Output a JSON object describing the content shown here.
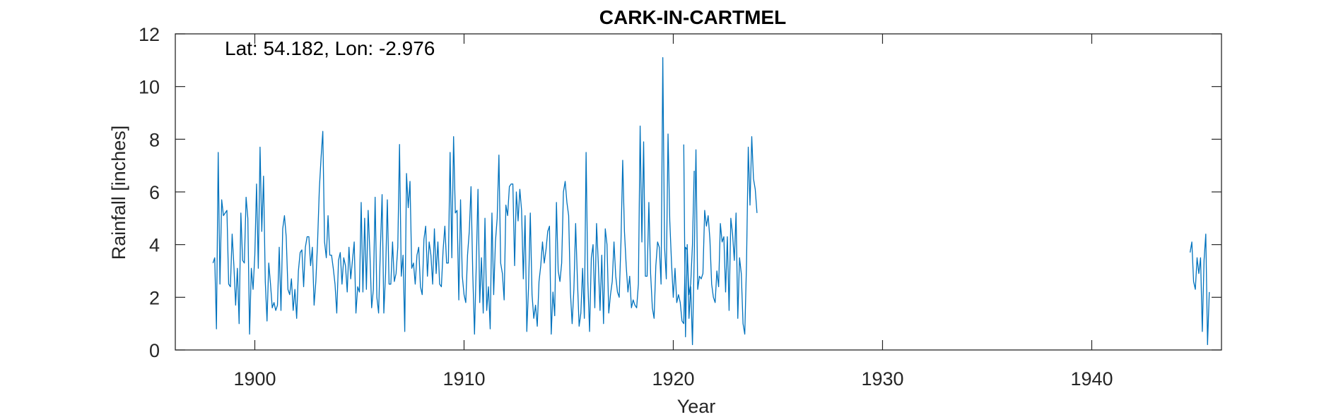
{
  "chart_data": {
    "type": "line",
    "title": "CARK-IN-CARTMEL",
    "xlabel": "Year",
    "ylabel": "Rainfall [inches]",
    "annotation": "Lat: 54.182, Lon: -2.976",
    "xlim": [
      1896.2,
      1946.2
    ],
    "ylim": [
      0,
      12
    ],
    "xticks": [
      1900,
      1910,
      1920,
      1930,
      1940
    ],
    "yticks": [
      0,
      2,
      4,
      6,
      8,
      10,
      12
    ],
    "grid": false,
    "line_color": "#0072BD",
    "series": [
      {
        "segments": [
          {
            "start": 1898.0,
            "step": 0.08333,
            "values": [
              3.3,
              3.5,
              0.8,
              7.5,
              2.5,
              5.7,
              5.1,
              5.2,
              5.3,
              2.5,
              2.4,
              4.4,
              3.2,
              1.7,
              3.1,
              1.0,
              5.2,
              3.4,
              3.3,
              5.8,
              5.0,
              0.6,
              3.1,
              2.3,
              3.6,
              6.3,
              3.1,
              7.7,
              4.5,
              6.6,
              2.6,
              1.1,
              3.3,
              2.5,
              1.6,
              1.8,
              1.5,
              1.7,
              3.9,
              1.5,
              4.6,
              5.1,
              4.3,
              2.3,
              2.1,
              2.7,
              1.5,
              2.3,
              1.2,
              3.0,
              3.7,
              3.8,
              2.4,
              3.9,
              4.3,
              4.3,
              3.2,
              3.9,
              1.7,
              2.6,
              4.1,
              6.1,
              7.3,
              8.3,
              4.1,
              3.5,
              5.1,
              3.6,
              3.6,
              3.1,
              2.5,
              1.4,
              3.4,
              3.7,
              2.5,
              3.5,
              3.2,
              2.2,
              3.9,
              2.7,
              3.4,
              4.1,
              1.4,
              2.4,
              2.2,
              5.6,
              2.2,
              5.0,
              2.3,
              5.3,
              3.7,
              1.6,
              2.3,
              5.8,
              2.0,
              1.4,
              3.8,
              5.9,
              1.4,
              2.9,
              5.7,
              2.5,
              2.5,
              4.1,
              2.6,
              2.9,
              3.9,
              7.8,
              2.8,
              3.6,
              0.7,
              6.7,
              5.4,
              6.4,
              3.1,
              3.3,
              2.5,
              3.6,
              3.9,
              2.4,
              2.1,
              4.2,
              4.7,
              2.8,
              4.1,
              3.6,
              2.5,
              4.6,
              2.9,
              4.1,
              2.5,
              2.4,
              3.8,
              4.7,
              3.3,
              3.3,
              7.5,
              3.5,
              8.1,
              5.2,
              5.3,
              1.9,
              5.7,
              2.8,
              2.1,
              1.8,
              3.6,
              4.5,
              6.2,
              2.9,
              0.6,
              3.2,
              6.1,
              1.8,
              3.5,
              1.4,
              5.0,
              1.5,
              2.4,
              0.8,
              5.2,
              2.1,
              4.1,
              5.0,
              7.4,
              3.3,
              2.9,
              1.9,
              5.5,
              5.1,
              6.2,
              6.3,
              6.3,
              3.2,
              6.0,
              4.9,
              6.1,
              5.3,
              2.7,
              5.1,
              0.7,
              2.4,
              5.2,
              2.1,
              1.2,
              1.7,
              0.9,
              2.6,
              3.2,
              4.1,
              3.3,
              3.8,
              4.5,
              4.7,
              0.6,
              2.2,
              1.3,
              5.6,
              3.0,
              2.6,
              3.3,
              6.0,
              6.4,
              5.6,
              5.1,
              2.2,
              1.0,
              2.3,
              4.8,
              2.7,
              0.9,
              1.4,
              3.1,
              1.2,
              7.5,
              2.6,
              0.7,
              3.5,
              4.0,
              1.6,
              4.8,
              3.3,
              1.5,
              3.6,
              1.0,
              4.6,
              4.0,
              1.4,
              2.1,
              2.6,
              4.1,
              2.8,
              2.2,
              2.0,
              4.1,
              7.2,
              4.5,
              3.2,
              2.2,
              2.8,
              1.6,
              1.9,
              1.7,
              1.6,
              2.5,
              8.5,
              4.1,
              7.9,
              2.8,
              2.8,
              5.6,
              2.9,
              1.6,
              1.2,
              3.2,
              4.1,
              3.9,
              2.5,
              11.1,
              3.9,
              2.7,
              8.2,
              4.9,
              3.3,
              2.0,
              3.1,
              1.8,
              2.1,
              1.8,
              1.1,
              1.0,
              3.9,
              3.8,
              2.1,
              2.5,
              4.0,
              6.8
            ]
          },
          {
            "start": 1920.5,
            "step": 0.08333,
            "values": [
              7.8,
              0.5,
              4.0,
              1.2,
              2.4,
              0.2,
              3.5,
              7.6,
              2.3,
              2.8,
              2.7,
              2.9,
              5.3,
              4.7,
              5.1,
              4.2,
              2.5,
              2.0,
              1.8,
              3.0,
              2.4,
              4.8,
              4.1,
              4.3,
              2.2,
              4.3,
              1.5,
              5.0,
              4.4,
              3.4,
              5.2,
              1.2,
              3.5,
              2.9,
              1.0,
              0.6,
              3.3,
              7.7,
              5.5,
              8.1,
              6.5,
              6.1,
              5.2
            ]
          },
          {
            "start": 1944.7,
            "step": 0.08333,
            "values": [
              3.7,
              4.1,
              2.6,
              2.3,
              3.5,
              2.9,
              3.5,
              0.7,
              3.4,
              4.4,
              0.2,
              2.2
            ]
          }
        ]
      }
    ]
  }
}
